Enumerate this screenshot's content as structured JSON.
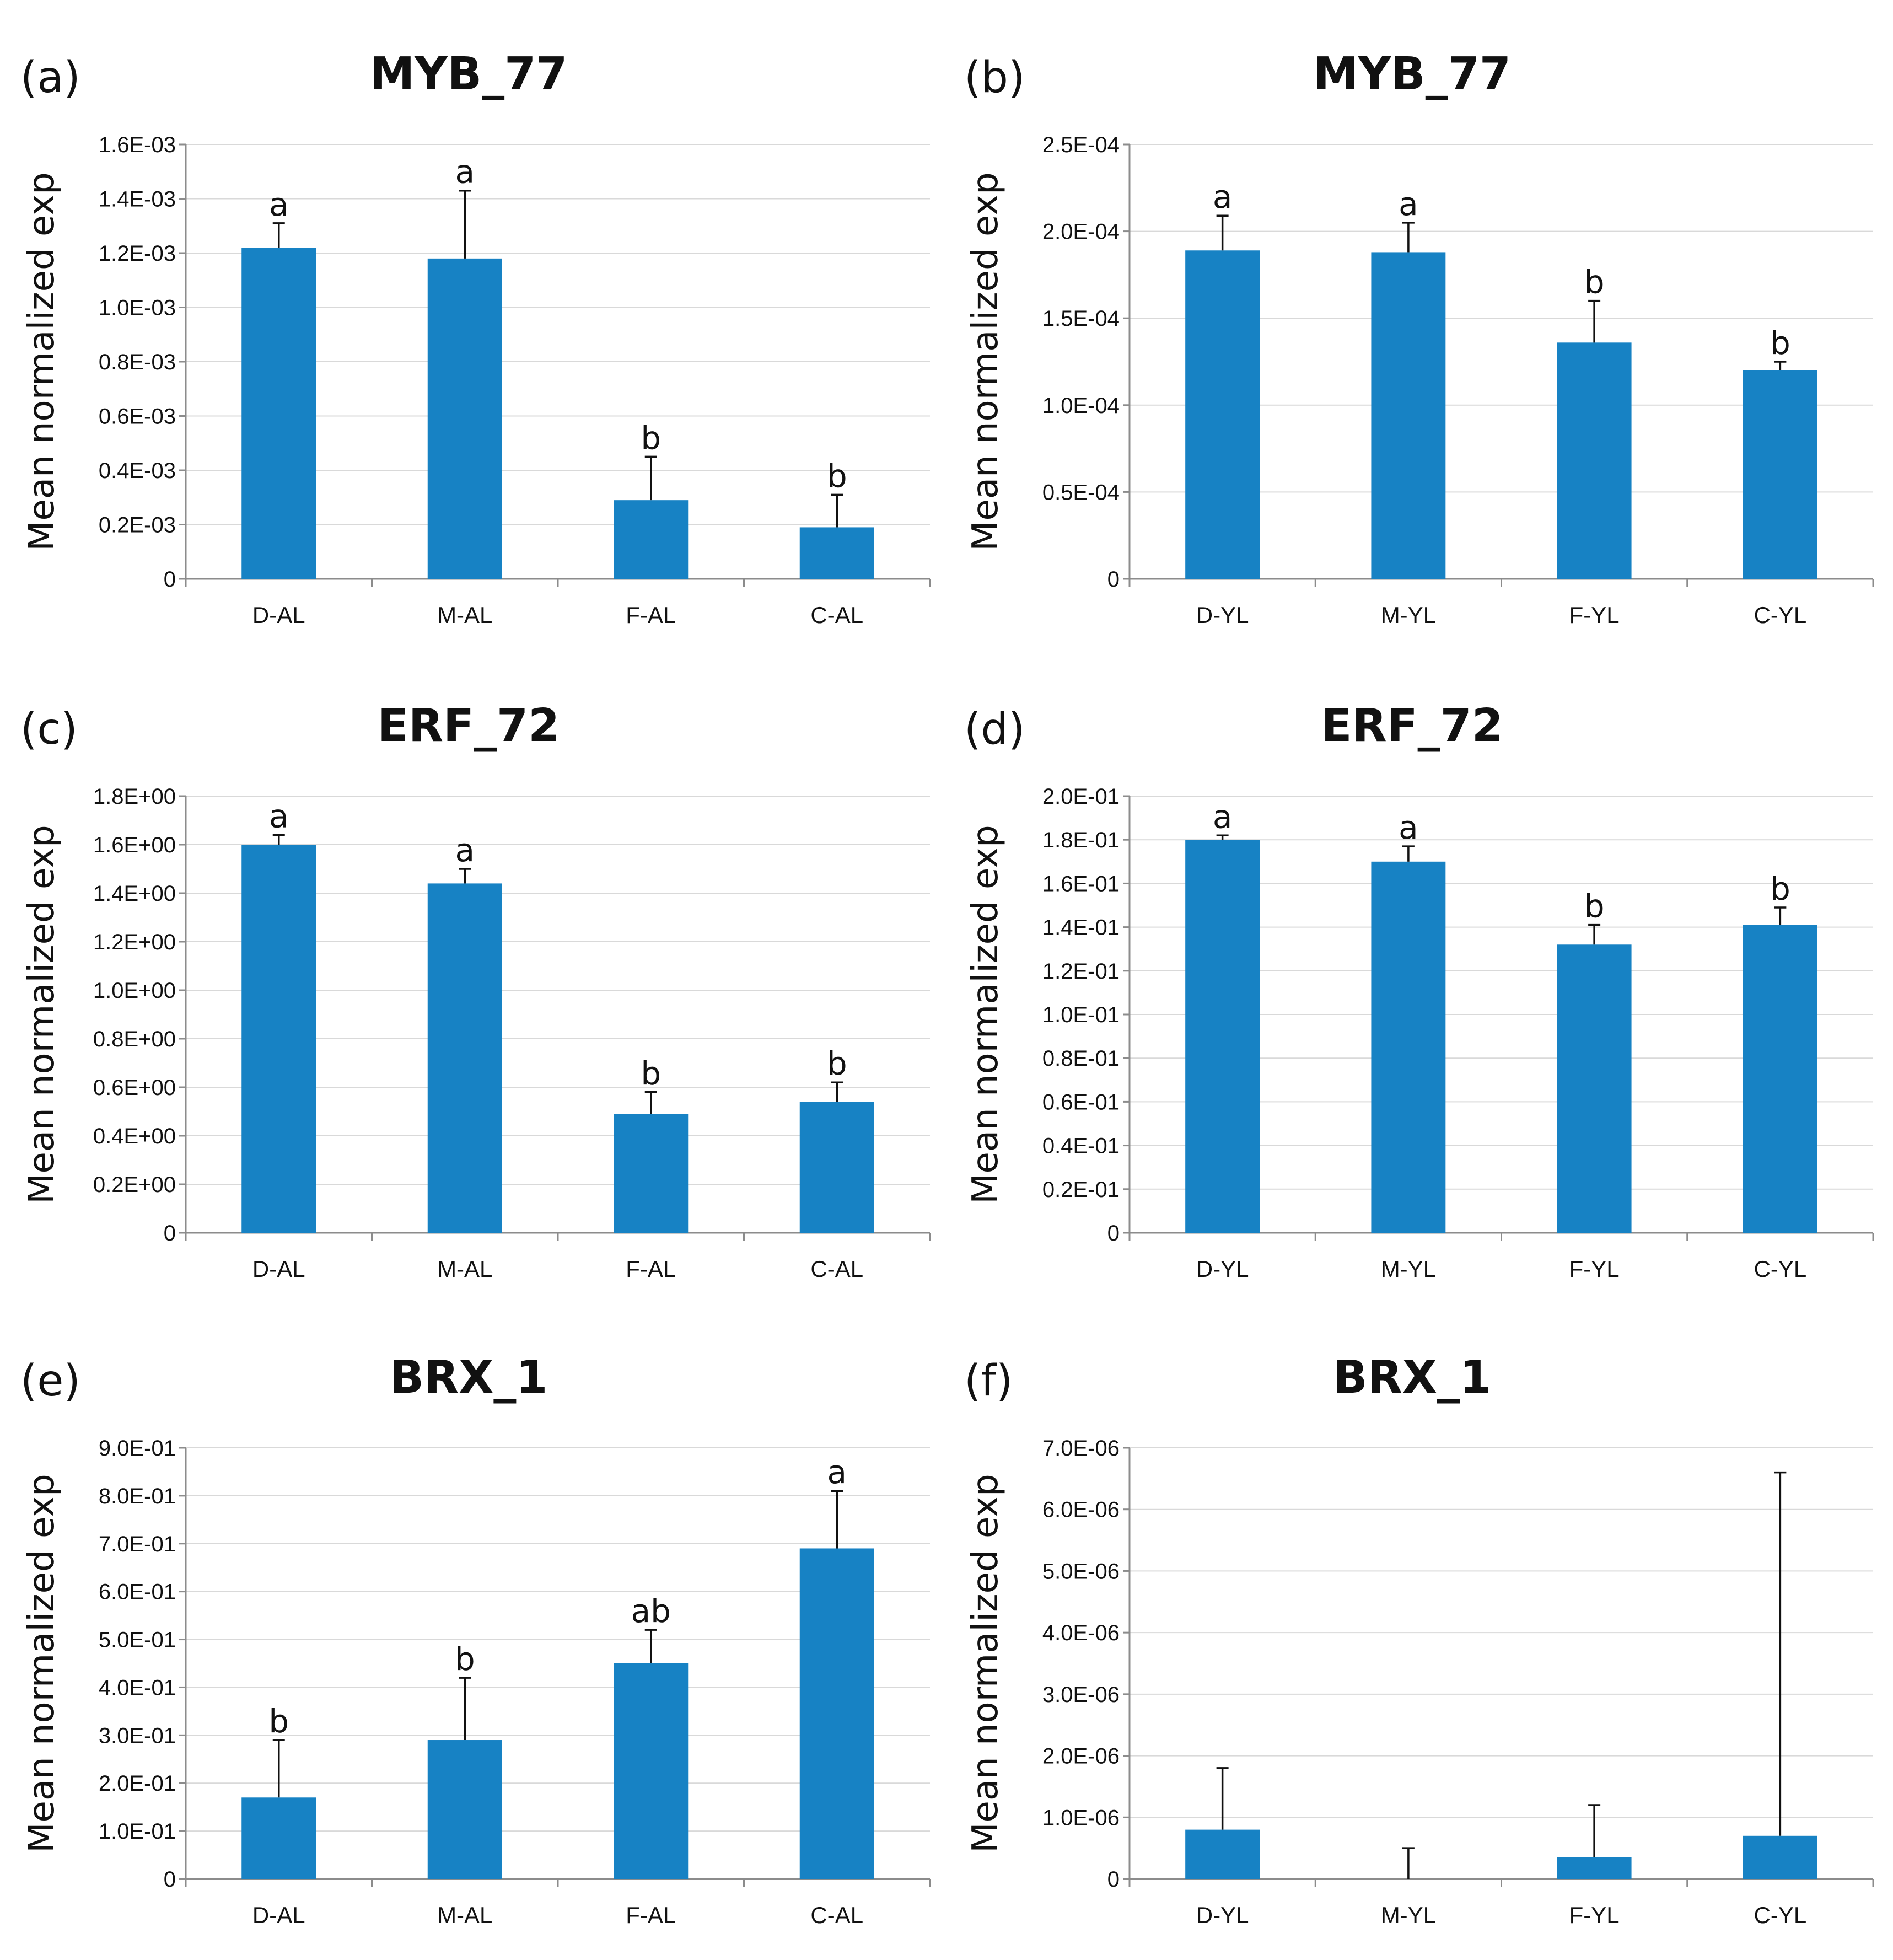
{
  "chart_data": [
    {
      "type": "bar",
      "panel_label": "(a)",
      "title": "MYB_77",
      "ylabel": "Mean normalized exp",
      "categories": [
        "D-AL",
        "M-AL",
        "F-AL",
        "C-AL"
      ],
      "values": [
        0.00122,
        0.00118,
        0.00029,
        0.00019
      ],
      "errors": [
        9e-05,
        0.00025,
        0.00016,
        0.00012
      ],
      "significance": [
        "a",
        "a",
        "b",
        "b"
      ],
      "ylim": [
        0,
        0.0016
      ],
      "yticks": [
        "0",
        "0.2E-03",
        "0.4E-03",
        "0.6E-03",
        "0.8E-03",
        "1.0E-03",
        "1.2E-03",
        "1.4E-03",
        "1.6E-03"
      ],
      "color": "#1782c4",
      "grid": true
    },
    {
      "type": "bar",
      "panel_label": "(b)",
      "title": "MYB_77",
      "ylabel": "Mean normalized exp",
      "categories": [
        "D-YL",
        "M-YL",
        "F-YL",
        "C-YL"
      ],
      "values": [
        0.000189,
        0.000188,
        0.000136,
        0.00012
      ],
      "errors": [
        2e-05,
        1.7e-05,
        2.4e-05,
        5e-06
      ],
      "significance": [
        "a",
        "a",
        "b",
        "b"
      ],
      "ylim": [
        0,
        0.00025
      ],
      "yticks": [
        "0",
        "0.5E-04",
        "1.0E-04",
        "1.5E-04",
        "2.0E-04",
        "2.5E-04"
      ],
      "color": "#1782c4",
      "grid": true
    },
    {
      "type": "bar",
      "panel_label": "(c)",
      "title": "ERF_72",
      "ylabel": "Mean normalized exp",
      "categories": [
        "D-AL",
        "M-AL",
        "F-AL",
        "C-AL"
      ],
      "values": [
        1.6,
        1.44,
        0.49,
        0.54
      ],
      "errors": [
        0.04,
        0.06,
        0.09,
        0.08
      ],
      "significance": [
        "a",
        "a",
        "b",
        "b"
      ],
      "ylim": [
        0,
        1.8
      ],
      "yticks": [
        "0",
        "0.2E+00",
        "0.4E+00",
        "0.6E+00",
        "0.8E+00",
        "1.0E+00",
        "1.2E+00",
        "1.4E+00",
        "1.6E+00",
        "1.8E+00"
      ],
      "color": "#1782c4",
      "grid": true
    },
    {
      "type": "bar",
      "panel_label": "(d)",
      "title": "ERF_72",
      "ylabel": "Mean normalized exp",
      "categories": [
        "D-YL",
        "M-YL",
        "F-YL",
        "C-YL"
      ],
      "values": [
        0.18,
        0.17,
        0.132,
        0.141
      ],
      "errors": [
        0.002,
        0.007,
        0.009,
        0.008
      ],
      "significance": [
        "a",
        "a",
        "b",
        "b"
      ],
      "ylim": [
        0,
        0.2
      ],
      "yticks": [
        "0",
        "0.2E-01",
        "0.4E-01",
        "0.6E-01",
        "0.8E-01",
        "1.0E-01",
        "1.2E-01",
        "1.4E-01",
        "1.6E-01",
        "1.8E-01",
        "2.0E-01"
      ],
      "color": "#1782c4",
      "grid": true
    },
    {
      "type": "bar",
      "panel_label": "(e)",
      "title": "BRX_1",
      "ylabel": "Mean normalized exp",
      "categories": [
        "D-AL",
        "M-AL",
        "F-AL",
        "C-AL"
      ],
      "values": [
        0.17,
        0.29,
        0.45,
        0.69
      ],
      "errors": [
        0.12,
        0.13,
        0.07,
        0.12
      ],
      "significance": [
        "b",
        "b",
        "ab",
        "a"
      ],
      "ylim": [
        0,
        0.9
      ],
      "yticks": [
        "0",
        "1.0E-01",
        "2.0E-01",
        "3.0E-01",
        "4.0E-01",
        "5.0E-01",
        "6.0E-01",
        "7.0E-01",
        "8.0E-01",
        "9.0E-01"
      ],
      "color": "#1782c4",
      "grid": true
    },
    {
      "type": "bar",
      "panel_label": "(f)",
      "title": "BRX_1",
      "ylabel": "Mean normalized exp",
      "categories": [
        "D-YL",
        "M-YL",
        "F-YL",
        "C-YL"
      ],
      "values": [
        8e-07,
        0.0,
        3.5e-07,
        7e-07
      ],
      "errors": [
        1e-06,
        5e-07,
        8.5e-07,
        5.9e-06
      ],
      "significance": [
        "",
        "",
        "",
        ""
      ],
      "ylim": [
        0,
        7e-06
      ],
      "yticks": [
        "0",
        "1.0E-06",
        "2.0E-06",
        "3.0E-06",
        "4.0E-06",
        "5.0E-06",
        "6.0E-06",
        "7.0E-06"
      ],
      "color": "#1782c4",
      "grid": true
    }
  ]
}
